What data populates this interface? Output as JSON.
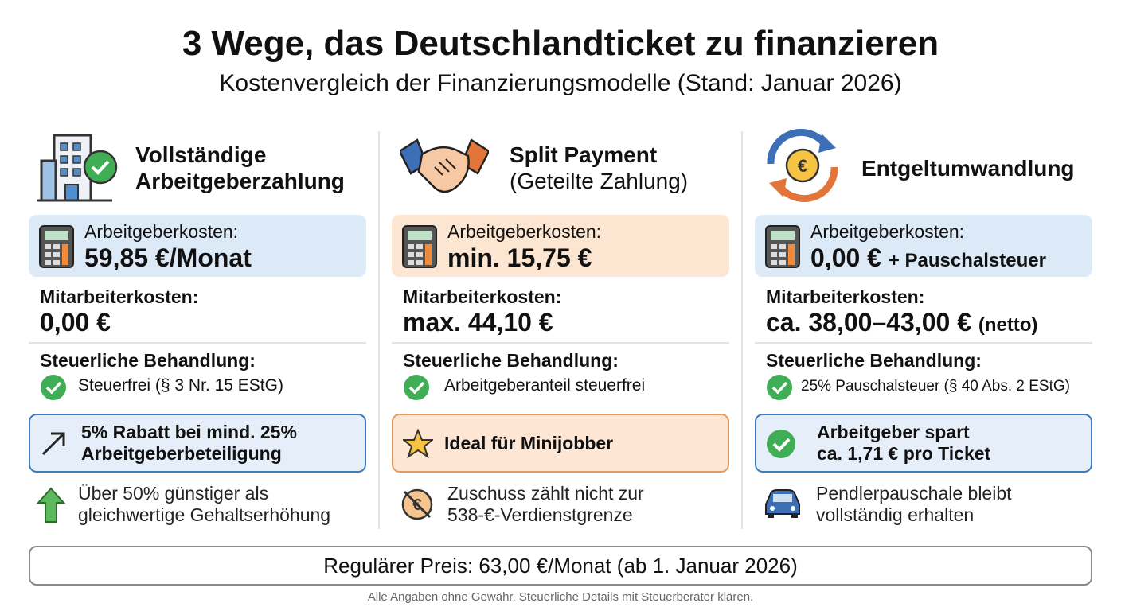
{
  "header": {
    "title": "3 Wege, das Deutschlandticket zu finanzieren",
    "subtitle": "Kostenvergleich der Finanzierungsmodelle (Stand: Januar 2026)"
  },
  "columns": [
    {
      "title": [
        "Vollständige",
        "Arbeitgeberzahlung"
      ],
      "employer_costs": {
        "label": "Arbeitgeberkosten:",
        "value": "59,85 €/Monat"
      },
      "employee_costs": {
        "label": "Mitarbeiterkosten:",
        "value": "0,00 €"
      },
      "tax": {
        "label": "Steuerliche Behandlung:",
        "text": "Steuerfrei (§ 3 Nr. 15 EStG)"
      },
      "highlight": [
        "5% Rabatt bei mind. 25%",
        "Arbeitgeberbeteiligung"
      ],
      "note": [
        "Über 50% günstiger als",
        "gleichwertige Gehaltserhöhung"
      ]
    },
    {
      "title": [
        "Split Payment",
        "(Geteilte Zahlung)"
      ],
      "employer_costs": {
        "label": "Arbeitgeberkosten:",
        "value": "min. 15,75 €"
      },
      "employee_costs": {
        "label": "Mitarbeiterkosten:",
        "value": "max. 44,10 €"
      },
      "tax": {
        "label": "Steuerliche Behandlung:",
        "text": "Arbeitgeberanteil steuerfrei"
      },
      "highlight": [
        "Ideal für Minijobber"
      ],
      "note": [
        "Zuschuss zählt nicht zur",
        "538-€-Verdienstgrenze"
      ]
    },
    {
      "title": [
        "Entgeltumwandlung"
      ],
      "employer_costs": {
        "label": "Arbeitgeberkosten:",
        "value": "0,00 €",
        "suffix": "+ Pauschalsteuer"
      },
      "employee_costs": {
        "label": "Mitarbeiterkosten:",
        "value": "ca. 38,00–43,00 €",
        "suffix": "(netto)"
      },
      "tax": {
        "label": "Steuerliche Behandlung:",
        "text": "25% Pauschalsteuer (§ 40 Abs. 2 EStG)"
      },
      "highlight": [
        "Arbeitgeber spart",
        "ca. 1,71 € pro Ticket"
      ],
      "note": [
        "Pendlerpauschale bleibt",
        "vollständig erhalten"
      ]
    }
  ],
  "footer": {
    "price": "Regulärer Preis: 63,00 €/Monat (ab 1. Januar 2026)",
    "disclaimer": "Alle Angaben ohne Gewähr. Steuerliche Details mit Steuerberater klären."
  }
}
